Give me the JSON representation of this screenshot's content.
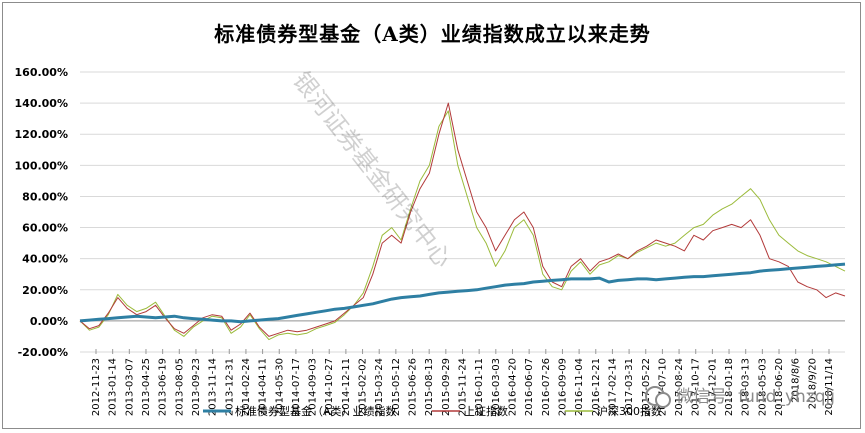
{
  "chart_data": {
    "type": "line",
    "title": "标准债券型基金（A类）业绩指数成立以来走势",
    "y_ticks": [
      "160.00%",
      "140.00%",
      "120.00%",
      "100.00%",
      "80.00%",
      "60.00%",
      "40.00%",
      "20.00%",
      "0.00%",
      "-20.00%"
    ],
    "ylim": [
      -20,
      160
    ],
    "grid": "horizontal",
    "legend_position": "bottom",
    "x_labels": [
      "2012-11-23",
      "2013-01-14",
      "2013-03-07",
      "2013-04-25",
      "2013-06-19",
      "2013-08-05",
      "2013-09-23",
      "2013-11-14",
      "2013-12-31",
      "2014-02-24",
      "2014-04-11",
      "2014-05-30",
      "2014-07-17",
      "2014-09-03",
      "2014-10-27",
      "2014-12-11",
      "2015-02-02",
      "2015-03-24",
      "2015-05-12",
      "2015-06-26",
      "2015-08-13",
      "2015-09-29",
      "2015-11-24",
      "2016-01-11",
      "2016-03-03",
      "2016-04-20",
      "2016-06-07",
      "2016-07-26",
      "2016-09-09",
      "2016-11-04",
      "2016-12-21",
      "2017-02-14",
      "2017-03-31",
      "2017-05-22",
      "2017-07-10",
      "2017-08-24",
      "2017-10-17",
      "2017-12-01",
      "2018-01-18",
      "2018-03-13",
      "2018-05-03",
      "2018-06-20",
      "2018/8/6",
      "2018/9/20",
      "2018/11/14"
    ],
    "series": [
      {
        "name": "标准债券型基金（A类）业绩指数",
        "color": "#2e7fa3",
        "values": [
          0,
          0.5,
          1,
          1.5,
          2,
          2.5,
          3,
          2.5,
          2,
          2.5,
          3,
          2,
          1.5,
          1,
          0.5,
          0,
          0,
          -0.5,
          0,
          0.5,
          1,
          1.5,
          2.5,
          3.5,
          4.5,
          5.5,
          6.5,
          7.5,
          8,
          9,
          10,
          11,
          12.5,
          14,
          15,
          15.5,
          16,
          17,
          18,
          18.5,
          19,
          19.5,
          20,
          21,
          22,
          23,
          23.5,
          24,
          25,
          25.5,
          26,
          26.5,
          27,
          27,
          27,
          27.5,
          25,
          26,
          26.5,
          27,
          27,
          26.5,
          27,
          27.5,
          28,
          28.5,
          28.5,
          29,
          29.5,
          30,
          30.5,
          31,
          32,
          32.5,
          33,
          33.5,
          34,
          34.5,
          35,
          35.5,
          36,
          36.5
        ]
      },
      {
        "name": "上证指数",
        "color": "#b23a3a",
        "values": [
          0,
          -5,
          -3,
          5,
          15,
          8,
          4,
          6,
          10,
          2,
          -5,
          -8,
          -3,
          2,
          4,
          3,
          -6,
          -2,
          5,
          -4,
          -10,
          -8,
          -6,
          -7,
          -6,
          -4,
          -2,
          0,
          5,
          10,
          15,
          30,
          50,
          55,
          50,
          70,
          85,
          95,
          120,
          140,
          110,
          90,
          70,
          60,
          45,
          55,
          65,
          70,
          60,
          35,
          25,
          22,
          35,
          40,
          32,
          38,
          40,
          43,
          40,
          45,
          48,
          52,
          50,
          48,
          45,
          55,
          52,
          58,
          60,
          62,
          60,
          65,
          55,
          40,
          38,
          35,
          25,
          22,
          20,
          15,
          18,
          16
        ]
      },
      {
        "name": "沪深300指数",
        "color": "#9bbb3b",
        "values": [
          0,
          -6,
          -4,
          4,
          17,
          10,
          6,
          8,
          12,
          3,
          -6,
          -10,
          -4,
          0,
          3,
          2,
          -8,
          -4,
          4,
          -5,
          -12,
          -9,
          -8,
          -9,
          -8,
          -5,
          -3,
          -1,
          4,
          10,
          18,
          35,
          55,
          60,
          52,
          72,
          90,
          100,
          125,
          135,
          100,
          80,
          60,
          50,
          35,
          45,
          60,
          65,
          55,
          30,
          22,
          20,
          32,
          38,
          30,
          36,
          38,
          42,
          40,
          44,
          47,
          50,
          48,
          50,
          55,
          60,
          62,
          68,
          72,
          75,
          80,
          85,
          78,
          65,
          55,
          50,
          45,
          42,
          40,
          38,
          35,
          32
        ]
      }
    ]
  },
  "watermark": "银河证券基金研究中心",
  "wechat_brand": "微信号: fund_yhzqjj"
}
